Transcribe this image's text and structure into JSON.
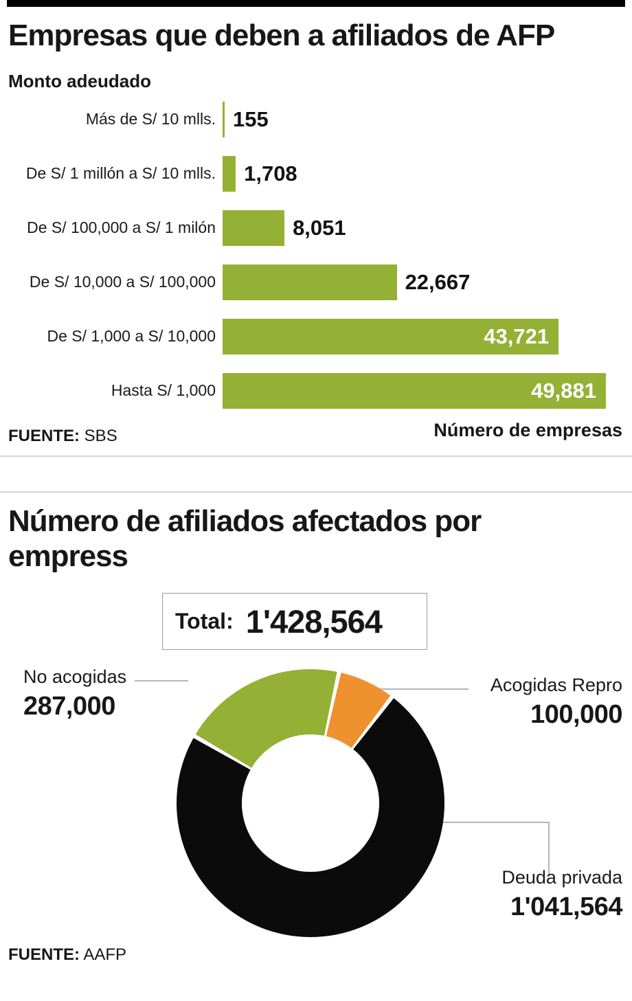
{
  "sources": [
    {
      "label": "FUENTE:",
      "value": "SBS"
    },
    {
      "label": "FUENTE:",
      "value": "AAFP"
    }
  ],
  "colors": {
    "bar_green": "#94b135",
    "donut_green": "#94b135",
    "donut_orange": "#ef912f",
    "donut_black": "#0b0b0b"
  },
  "chart_data": [
    {
      "type": "bar",
      "orientation": "horizontal",
      "title": "Empresas que deben a afiliados de AFP",
      "subtitle": "Monto adeudado",
      "categories": [
        "Más de S/ 10 mlls.",
        "De S/ 1 millón a S/ 10 mlls.",
        "De S/ 100,000 a S/ 1 milón",
        "De S/ 10,000 a S/ 100,000",
        "De S/ 1,000 a S/ 10,000",
        "Hasta S/ 1,000"
      ],
      "values": [
        155,
        1708,
        8051,
        22667,
        43721,
        49881
      ],
      "value_labels": [
        "155",
        "1,708",
        "8,051",
        "22,667",
        "43,721",
        "49,881"
      ],
      "xlabel": "Número de empresas",
      "xlim": [
        0,
        49881
      ],
      "bar_color": "#94b135",
      "grid": false,
      "legend": false
    },
    {
      "type": "donut",
      "title": "Número de afiliados afectados por empress",
      "total_label": "Total:",
      "total_value": "1'428,564",
      "total_numeric": 1428564,
      "slices": [
        {
          "label": "No acogidas",
          "value": 287000,
          "display": "287,000",
          "color": "#94b135"
        },
        {
          "label": "Acogidas Repro",
          "value": 100000,
          "display": "100,000",
          "color": "#ef912f"
        },
        {
          "label": "Deuda privada",
          "value": 1041564,
          "display": "1'041,564",
          "color": "#0b0b0b"
        }
      ],
      "legend": false
    }
  ]
}
